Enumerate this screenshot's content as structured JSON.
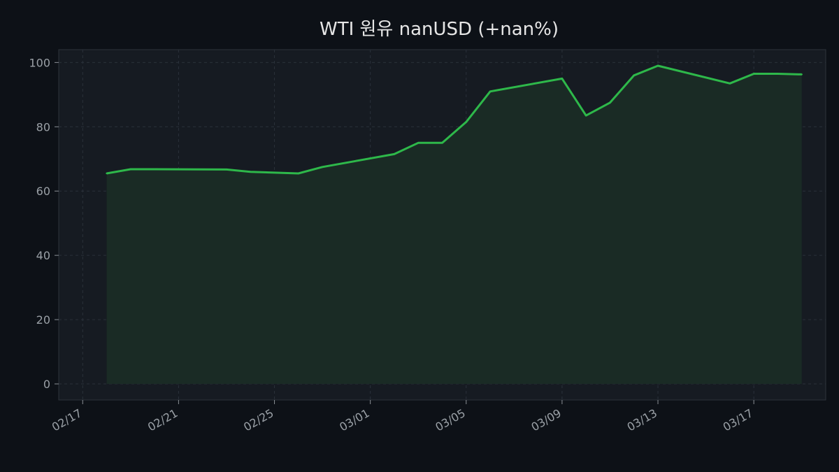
{
  "chart_data": {
    "type": "area",
    "title": "WTI 원유  nanUSD  (+nan%)",
    "xlabel": "",
    "ylabel": "",
    "x": [
      "2026-02-18",
      "2026-02-19",
      "2026-02-20",
      "2026-02-23",
      "2026-02-24",
      "2026-02-26",
      "2026-02-27",
      "2026-03-02",
      "2026-03-03",
      "2026-03-04",
      "2026-03-05",
      "2026-03-06",
      "2026-03-09",
      "2026-03-10",
      "2026-03-11",
      "2026-03-12",
      "2026-03-13",
      "2026-03-16",
      "2026-03-17",
      "2026-03-18",
      "2026-03-19"
    ],
    "series": [
      {
        "values": [
          65.5,
          66.8,
          66.8,
          66.7,
          66.0,
          65.5,
          67.5,
          71.5,
          75.0,
          75.0,
          81.5,
          91.0,
          95.0,
          83.5,
          87.5,
          96.0,
          99.0,
          93.5,
          96.5,
          96.5,
          96.3
        ]
      }
    ],
    "x_ticks": [
      "02/17",
      "02/21",
      "02/25",
      "03/01",
      "03/05",
      "03/09",
      "03/13",
      "03/17"
    ],
    "y_ticks": [
      0,
      20,
      40,
      60,
      80,
      100
    ],
    "ylim": [
      -5,
      104
    ],
    "xlim": [
      "2026-02-16",
      "2026-03-20"
    ],
    "grid": true,
    "colors": {
      "line": "#2eb84a",
      "fill": "#1a2b25",
      "background": "#0d1117",
      "plot_background": "#161b22",
      "grid": "#2a313a"
    }
  }
}
